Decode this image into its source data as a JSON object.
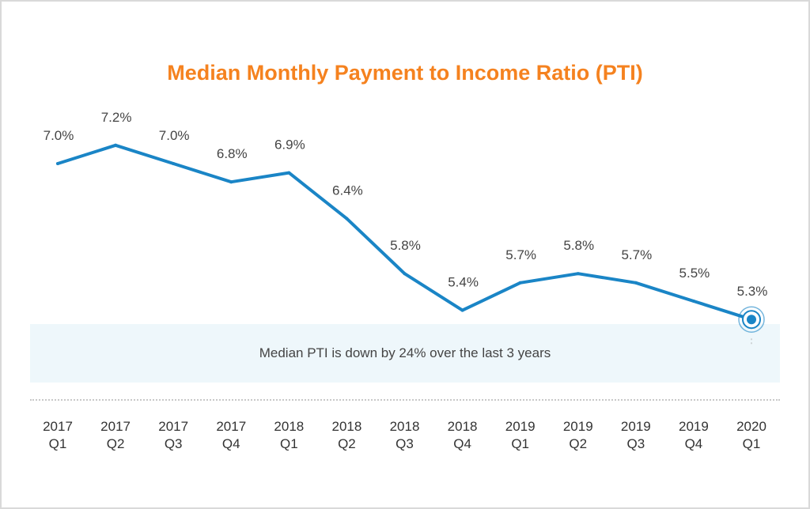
{
  "chart_data": {
    "type": "line",
    "title": "Median Monthly Payment to Income Ratio (PTI)",
    "xlabel": "",
    "ylabel": "",
    "annotation": "Median PTI is down by 24% over the last 3 years",
    "categories": [
      [
        "2017",
        "Q1"
      ],
      [
        "2017",
        "Q2"
      ],
      [
        "2017",
        "Q3"
      ],
      [
        "2017",
        "Q4"
      ],
      [
        "2018",
        "Q1"
      ],
      [
        "2018",
        "Q2"
      ],
      [
        "2018",
        "Q3"
      ],
      [
        "2018",
        "Q4"
      ],
      [
        "2019",
        "Q1"
      ],
      [
        "2019",
        "Q2"
      ],
      [
        "2019",
        "Q3"
      ],
      [
        "2019",
        "Q4"
      ],
      [
        "2020",
        "Q1"
      ]
    ],
    "series": [
      {
        "values": [
          7.0,
          7.2,
          7.0,
          6.8,
          6.9,
          6.4,
          5.8,
          5.4,
          5.7,
          5.8,
          5.7,
          5.5,
          5.3
        ],
        "labels": [
          "7.0%",
          "7.2%",
          "7.0%",
          "6.8%",
          "6.9%",
          "6.4%",
          "5.8%",
          "5.4%",
          "5.7%",
          "5.8%",
          "5.7%",
          "5.5%",
          "5.3%"
        ],
        "color": "#1a85c6"
      }
    ],
    "grid": false,
    "legend": "none",
    "colors": {
      "title": "#f5821f",
      "line": "#1a85c6",
      "banner": "#eef7fb"
    }
  }
}
